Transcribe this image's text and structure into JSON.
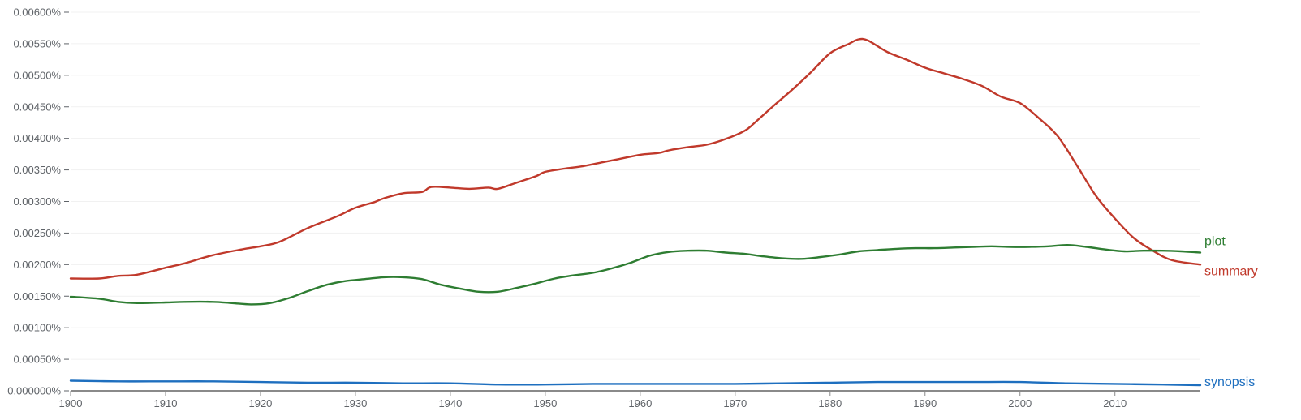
{
  "chart_data": {
    "type": "line",
    "title": "",
    "xlabel": "",
    "ylabel": "",
    "xlim": [
      1900,
      2019
    ],
    "ylim": [
      0,
      0.006
    ],
    "y_unit": "percent",
    "grid": true,
    "legend": "inline-right",
    "y_ticks": [
      "0.000000%",
      "0.00050%",
      "0.00100%",
      "0.00150%",
      "0.00200%",
      "0.00250%",
      "0.00300%",
      "0.00350%",
      "0.00400%",
      "0.00450%",
      "0.00500%",
      "0.00550%",
      "0.00600%"
    ],
    "x_ticks": [
      "1900",
      "1910",
      "1920",
      "1930",
      "1940",
      "1950",
      "1960",
      "1970",
      "1980",
      "1990",
      "2000",
      "2010"
    ],
    "series": [
      {
        "name": "summary",
        "color": "#c0392b",
        "x": [
          1900,
          1903,
          1905,
          1907,
          1910,
          1912,
          1915,
          1918,
          1920,
          1922,
          1925,
          1928,
          1930,
          1932,
          1933,
          1935,
          1937,
          1938,
          1940,
          1942,
          1944,
          1945,
          1947,
          1949,
          1950,
          1952,
          1954,
          1956,
          1958,
          1960,
          1962,
          1963,
          1965,
          1967,
          1969,
          1971,
          1972,
          1974,
          1976,
          1978,
          1980,
          1982,
          1983,
          1984,
          1986,
          1988,
          1990,
          1992,
          1994,
          1996,
          1998,
          2000,
          2002,
          2004,
          2006,
          2008,
          2010,
          2012,
          2014,
          2016,
          2019
        ],
        "y": [
          0.00178,
          0.00178,
          0.00182,
          0.00184,
          0.00195,
          0.00202,
          0.00215,
          0.00224,
          0.00229,
          0.00236,
          0.00258,
          0.00276,
          0.0029,
          0.00299,
          0.00305,
          0.00313,
          0.00315,
          0.00323,
          0.00322,
          0.0032,
          0.00322,
          0.0032,
          0.0033,
          0.0034,
          0.00347,
          0.00352,
          0.00356,
          0.00362,
          0.00368,
          0.00374,
          0.00377,
          0.00381,
          0.00386,
          0.0039,
          0.00399,
          0.00412,
          0.00424,
          0.00451,
          0.00477,
          0.00505,
          0.00535,
          0.0055,
          0.00557,
          0.00555,
          0.00537,
          0.00525,
          0.00512,
          0.00503,
          0.00494,
          0.00483,
          0.00466,
          0.00456,
          0.00432,
          0.00403,
          0.00357,
          0.00309,
          0.00273,
          0.00242,
          0.00222,
          0.00207,
          0.002
        ]
      },
      {
        "name": "plot",
        "color": "#2e7d32",
        "x": [
          1900,
          1903,
          1905,
          1907,
          1910,
          1912,
          1915,
          1917,
          1919,
          1921,
          1923,
          1925,
          1927,
          1929,
          1931,
          1933,
          1935,
          1937,
          1939,
          1941,
          1943,
          1945,
          1947,
          1949,
          1951,
          1953,
          1955,
          1957,
          1959,
          1961,
          1963,
          1965,
          1967,
          1969,
          1971,
          1973,
          1975,
          1977,
          1979,
          1981,
          1983,
          1985,
          1987,
          1989,
          1991,
          1993,
          1995,
          1997,
          1999,
          2001,
          2003,
          2005,
          2007,
          2009,
          2011,
          2013,
          2015,
          2017,
          2019
        ],
        "y": [
          0.00149,
          0.00146,
          0.00141,
          0.00139,
          0.0014,
          0.00141,
          0.00141,
          0.00139,
          0.00137,
          0.00139,
          0.00147,
          0.00158,
          0.00168,
          0.00174,
          0.00177,
          0.0018,
          0.0018,
          0.00177,
          0.00168,
          0.00162,
          0.00157,
          0.00157,
          0.00163,
          0.0017,
          0.00178,
          0.00183,
          0.00187,
          0.00194,
          0.00203,
          0.00214,
          0.0022,
          0.00222,
          0.00222,
          0.00219,
          0.00217,
          0.00213,
          0.0021,
          0.00209,
          0.00212,
          0.00216,
          0.00221,
          0.00223,
          0.00225,
          0.00226,
          0.00226,
          0.00227,
          0.00228,
          0.00229,
          0.00228,
          0.00228,
          0.00229,
          0.00231,
          0.00228,
          0.00224,
          0.00221,
          0.00222,
          0.00222,
          0.00221,
          0.00219
        ]
      },
      {
        "name": "synopsis",
        "color": "#1e6fbf",
        "x": [
          1900,
          1905,
          1910,
          1915,
          1920,
          1925,
          1930,
          1935,
          1940,
          1945,
          1950,
          1955,
          1960,
          1965,
          1970,
          1975,
          1980,
          1985,
          1990,
          1995,
          2000,
          2005,
          2010,
          2015,
          2019
        ],
        "y": [
          0.00016,
          0.00015,
          0.00015,
          0.00015,
          0.00014,
          0.00013,
          0.00013,
          0.00012,
          0.00012,
          0.0001,
          0.0001,
          0.00011,
          0.00011,
          0.00011,
          0.00011,
          0.00012,
          0.00013,
          0.00014,
          0.00014,
          0.00014,
          0.00014,
          0.00012,
          0.00011,
          0.0001,
          9e-05
        ]
      }
    ]
  }
}
